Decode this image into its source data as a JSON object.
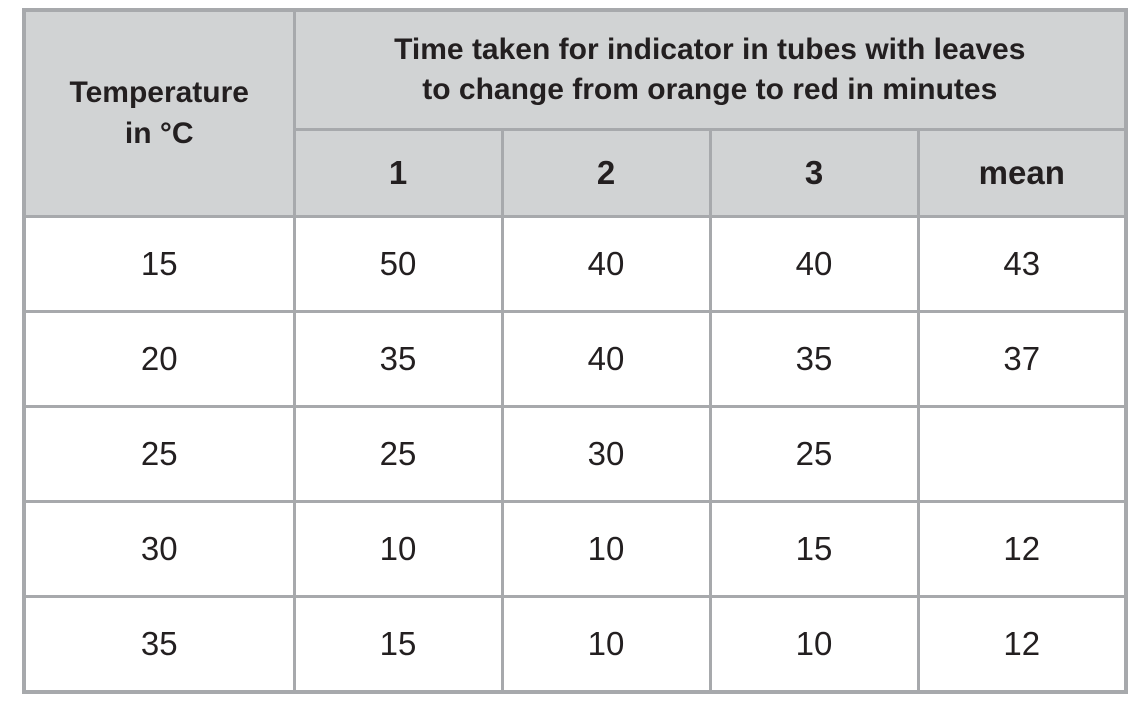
{
  "table": {
    "corner_header_line1": "Temperature",
    "corner_header_line2": "in °C",
    "span_header_line1": "Time taken for indicator in tubes with leaves",
    "span_header_line2": "to change from orange to red in minutes",
    "sub_headers": [
      "1",
      "2",
      "3",
      "mean"
    ],
    "rows": [
      {
        "cells": [
          "15",
          "50",
          "40",
          "40",
          "43"
        ]
      },
      {
        "cells": [
          "20",
          "35",
          "40",
          "35",
          "37"
        ]
      },
      {
        "cells": [
          "25",
          "25",
          "30",
          "25",
          ""
        ]
      },
      {
        "cells": [
          "30",
          "10",
          "10",
          "15",
          "12"
        ]
      },
      {
        "cells": [
          "35",
          "15",
          "10",
          "10",
          "12"
        ]
      }
    ]
  },
  "colors": {
    "header_background": "#d1d3d4",
    "grid_border": "#a7a9ac",
    "text": "#231f20",
    "cell_background": "#ffffff"
  },
  "chart_data": {
    "type": "table",
    "title": "Time taken for indicator in tubes with leaves to change from orange to red in minutes",
    "row_label_header": "Temperature in °C",
    "columns": [
      "1",
      "2",
      "3",
      "mean"
    ],
    "temperatures_c": [
      15,
      20,
      25,
      30,
      35
    ],
    "values": [
      [
        50,
        40,
        40,
        43
      ],
      [
        35,
        40,
        35,
        37
      ],
      [
        25,
        30,
        25,
        null
      ],
      [
        10,
        10,
        15,
        12
      ],
      [
        15,
        10,
        10,
        12
      ]
    ],
    "notes": "mean value for 25 °C row is blank in the source table"
  }
}
